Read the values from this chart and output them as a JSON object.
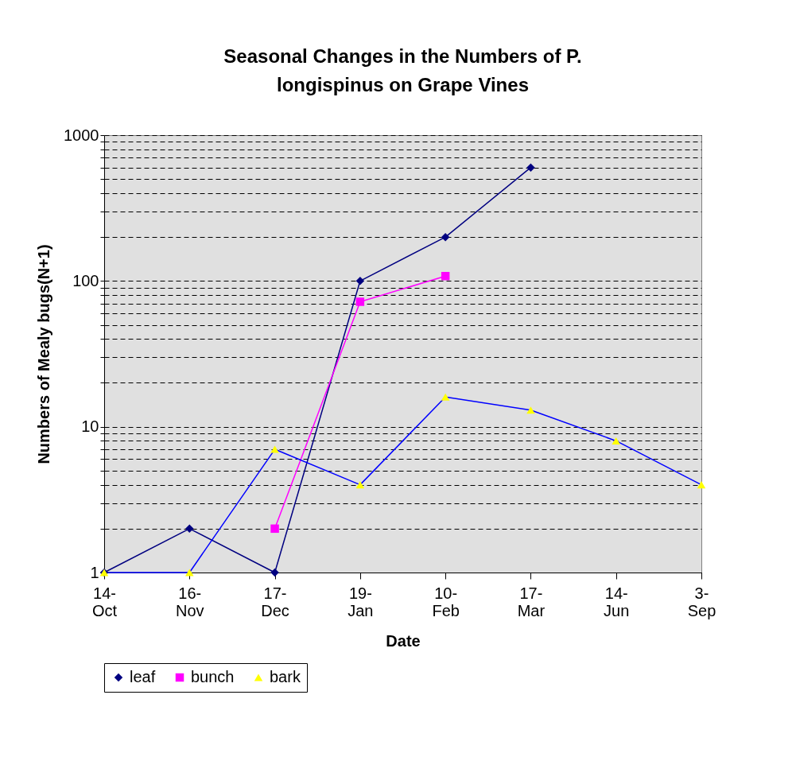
{
  "chart_data": {
    "type": "line",
    "title": "Seasonal Changes in the Numbers of P. longispinus on Grape Vines",
    "xlabel": "Date",
    "ylabel": "Numbers of Mealy bugs(N+1)",
    "categories": [
      "14-\nOct",
      "16-\nNov",
      "17-\nDec",
      "19-\nJan",
      "10-\nFeb",
      "17-\nMar",
      "14-\nJun",
      "3-\nSep"
    ],
    "series": [
      {
        "name": "leaf",
        "color": "#000080",
        "marker": "diamond",
        "values": [
          1,
          2,
          1,
          100,
          200,
          600,
          null,
          null
        ]
      },
      {
        "name": "bunch",
        "color": "#ff00ff",
        "marker": "square",
        "values": [
          null,
          null,
          2,
          72,
          108,
          null,
          null,
          null
        ]
      },
      {
        "name": "bark",
        "color": "#0000ff",
        "marker": "triangle",
        "colors": [
          "#ffff00",
          "#ffff00",
          "#ffff00",
          "#ffff00",
          "#ffff00",
          "#ffff00",
          "#ffff00",
          "#ffff00"
        ],
        "values": [
          1,
          1,
          7,
          4,
          16,
          13,
          8,
          4
        ]
      }
    ],
    "log": "y",
    "ylim": [
      1,
      1000
    ],
    "yticks": [
      1,
      {
        "value": 2,
        "label": null
      },
      {
        "value": 3,
        "label": null
      },
      {
        "value": 4,
        "label": null
      },
      {
        "value": 5,
        "label": null
      },
      {
        "value": 6,
        "label": null
      },
      {
        "value": 7,
        "label": null
      },
      {
        "value": 8,
        "label": null
      },
      {
        "value": 9,
        "label": null
      },
      10,
      {
        "value": 20,
        "label": null
      },
      {
        "value": 30,
        "label": null
      },
      {
        "value": 40,
        "label": null
      },
      {
        "value": 50,
        "label": null
      },
      {
        "value": 60,
        "label": null
      },
      {
        "value": 70,
        "label": null
      },
      {
        "value": 80,
        "label": null
      },
      {
        "value": 90,
        "label": null
      },
      100,
      {
        "value": 200,
        "label": null
      },
      {
        "value": 300,
        "label": null
      },
      {
        "value": 400,
        "label": null
      },
      {
        "value": 500,
        "label": null
      },
      {
        "value": 600,
        "label": null
      },
      {
        "value": 700,
        "label": null
      },
      {
        "value": 800,
        "label": null
      },
      {
        "value": 900,
        "label": null
      },
      1000
    ],
    "grid": "y",
    "legend": "bottom",
    "line_style": "solid"
  }
}
